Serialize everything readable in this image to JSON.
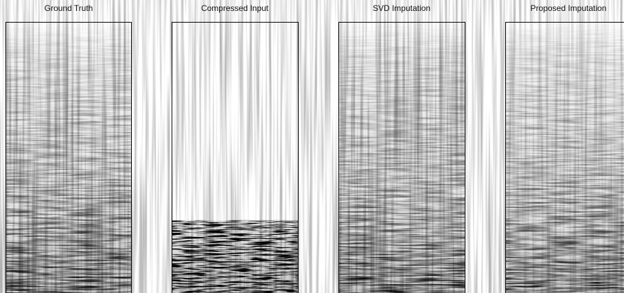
{
  "panels": [
    {
      "title": "Ground Truth"
    },
    {
      "title": "Compressed Input"
    },
    {
      "title": "SVD Imputation"
    },
    {
      "title": "Proposed Imputation"
    }
  ]
}
